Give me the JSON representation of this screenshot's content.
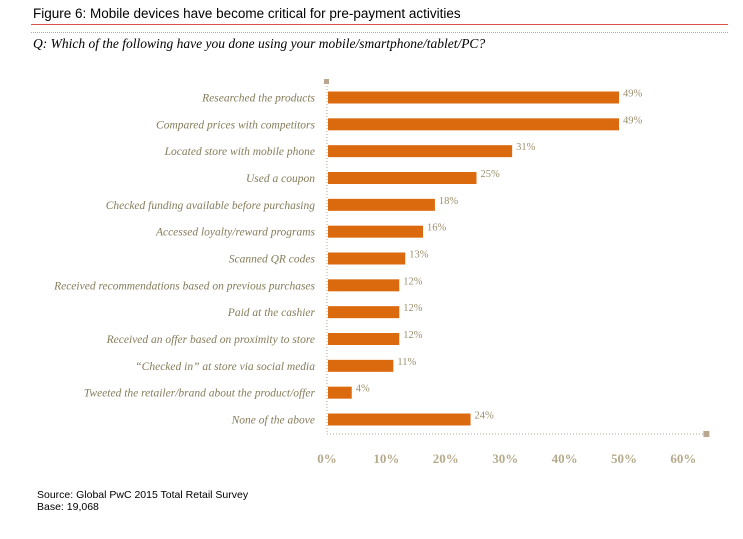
{
  "figure_title": "Figure 6: Mobile devices have become critical for pre-payment activities",
  "question": "Q: Which of the following have you done using your mobile/smartphone/tablet/PC?",
  "source_line": "Source: Global PwC 2015 Total Retail Survey",
  "base_line": "Base: 19,068",
  "colors": {
    "bar": "#db6a0f",
    "axis": "#b9a78f",
    "rule": "#d9534a"
  },
  "chart_data": {
    "type": "bar",
    "orientation": "horizontal",
    "title": "Figure 6: Mobile devices have become critical for pre-payment activities",
    "xlabel": "",
    "ylabel": "",
    "xlim": [
      0,
      60
    ],
    "x_ticks": [
      0,
      10,
      20,
      30,
      40,
      50,
      60
    ],
    "x_tick_labels": [
      "0%",
      "10%",
      "20%",
      "30%",
      "40%",
      "50%",
      "60%"
    ],
    "categories": [
      "Researched the products",
      "Compared prices with competitors",
      "Located store with mobile phone",
      "Used a coupon",
      "Checked funding available before purchasing",
      "Accessed loyalty/reward programs",
      "Scanned QR codes",
      "Received recommendations based on previous purchases",
      "Paid at the cashier",
      "Received an offer based on proximity to store",
      "“Checked in” at store via social media",
      "Tweeted the retailer/brand about the product/offer",
      "None of the above"
    ],
    "values": [
      49,
      49,
      31,
      25,
      18,
      16,
      13,
      12,
      12,
      12,
      11,
      4,
      24
    ],
    "value_labels": [
      "49%",
      "49%",
      "31%",
      "25%",
      "18%",
      "16%",
      "13%",
      "12%",
      "12%",
      "12%",
      "11%",
      "4%",
      "24%"
    ]
  }
}
